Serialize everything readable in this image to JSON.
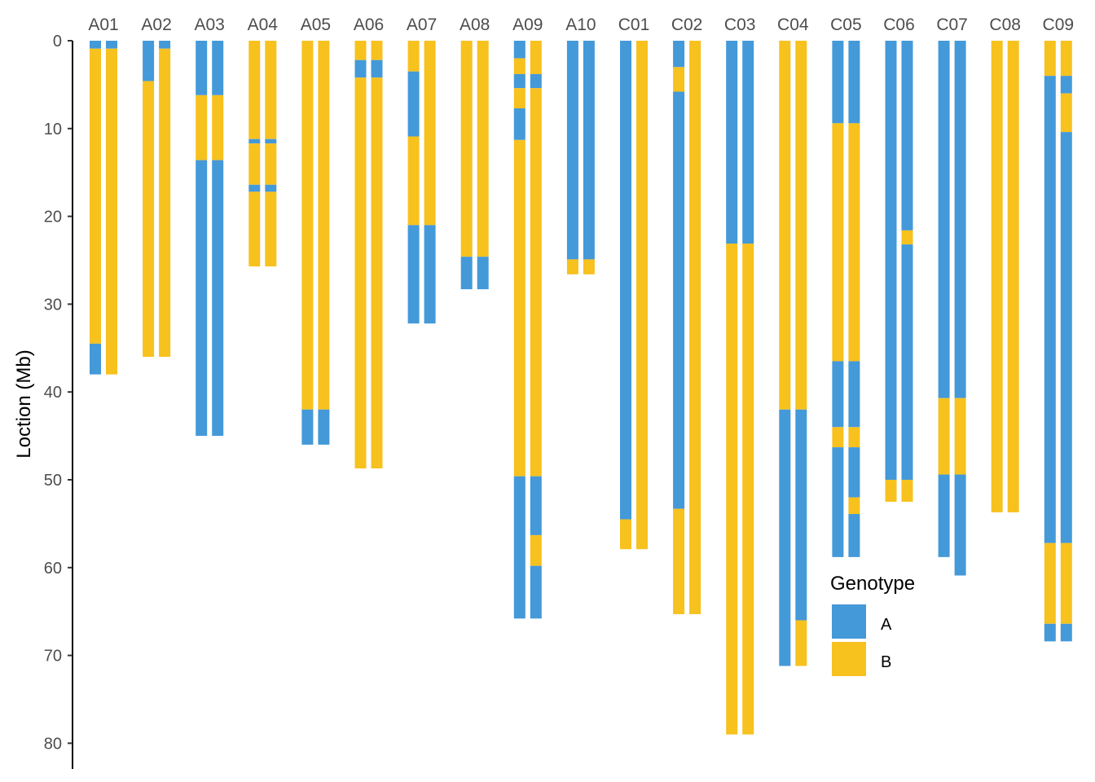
{
  "chart_data": {
    "type": "bar",
    "subtype": "chromosome-genotype-ideogram",
    "ylabel": "Loction (Mb)",
    "ylim": [
      0,
      83
    ],
    "y_reversed": true,
    "y_ticks": [
      0,
      10,
      20,
      30,
      40,
      50,
      60,
      70,
      80
    ],
    "grid": false,
    "colors": {
      "A": "#4499d9",
      "B": "#f7c11e"
    },
    "legend": {
      "title": "Genotype",
      "entries": [
        "A",
        "B"
      ],
      "position": "bottom-right"
    },
    "chromosomes": [
      {
        "name": "A01",
        "haplotypes": [
          [
            {
              "start": 0,
              "end": 0.9,
              "genotype": "A"
            },
            {
              "start": 0.9,
              "end": 34.5,
              "genotype": "B"
            },
            {
              "start": 34.5,
              "end": 38,
              "genotype": "A"
            }
          ],
          [
            {
              "start": 0,
              "end": 0.9,
              "genotype": "A"
            },
            {
              "start": 0.9,
              "end": 38,
              "genotype": "B"
            }
          ]
        ]
      },
      {
        "name": "A02",
        "haplotypes": [
          [
            {
              "start": 0,
              "end": 4.6,
              "genotype": "A"
            },
            {
              "start": 4.6,
              "end": 36,
              "genotype": "B"
            }
          ],
          [
            {
              "start": 0,
              "end": 0.9,
              "genotype": "A"
            },
            {
              "start": 0.9,
              "end": 36,
              "genotype": "B"
            }
          ]
        ]
      },
      {
        "name": "A03",
        "haplotypes": [
          [
            {
              "start": 0,
              "end": 6.2,
              "genotype": "A"
            },
            {
              "start": 6.2,
              "end": 13.6,
              "genotype": "B"
            },
            {
              "start": 13.6,
              "end": 45,
              "genotype": "A"
            }
          ],
          [
            {
              "start": 0,
              "end": 6.2,
              "genotype": "A"
            },
            {
              "start": 6.2,
              "end": 13.6,
              "genotype": "B"
            },
            {
              "start": 13.6,
              "end": 45,
              "genotype": "A"
            }
          ]
        ]
      },
      {
        "name": "A04",
        "haplotypes": [
          [
            {
              "start": 0,
              "end": 11.2,
              "genotype": "B"
            },
            {
              "start": 11.2,
              "end": 11.7,
              "genotype": "A"
            },
            {
              "start": 11.7,
              "end": 16.4,
              "genotype": "B"
            },
            {
              "start": 16.4,
              "end": 17.2,
              "genotype": "A"
            },
            {
              "start": 17.2,
              "end": 25.7,
              "genotype": "B"
            }
          ],
          [
            {
              "start": 0,
              "end": 11.2,
              "genotype": "B"
            },
            {
              "start": 11.2,
              "end": 11.7,
              "genotype": "A"
            },
            {
              "start": 11.7,
              "end": 16.4,
              "genotype": "B"
            },
            {
              "start": 16.4,
              "end": 17.2,
              "genotype": "A"
            },
            {
              "start": 17.2,
              "end": 25.7,
              "genotype": "B"
            }
          ]
        ]
      },
      {
        "name": "A05",
        "haplotypes": [
          [
            {
              "start": 0,
              "end": 42,
              "genotype": "B"
            },
            {
              "start": 42,
              "end": 46,
              "genotype": "A"
            }
          ],
          [
            {
              "start": 0,
              "end": 42,
              "genotype": "B"
            },
            {
              "start": 42,
              "end": 46,
              "genotype": "A"
            }
          ]
        ]
      },
      {
        "name": "A06",
        "haplotypes": [
          [
            {
              "start": 0,
              "end": 2.2,
              "genotype": "B"
            },
            {
              "start": 2.2,
              "end": 4.2,
              "genotype": "A"
            },
            {
              "start": 4.2,
              "end": 48.7,
              "genotype": "B"
            }
          ],
          [
            {
              "start": 0,
              "end": 2.2,
              "genotype": "B"
            },
            {
              "start": 2.2,
              "end": 4.2,
              "genotype": "A"
            },
            {
              "start": 4.2,
              "end": 48.7,
              "genotype": "B"
            }
          ]
        ]
      },
      {
        "name": "A07",
        "haplotypes": [
          [
            {
              "start": 0,
              "end": 3.5,
              "genotype": "B"
            },
            {
              "start": 3.5,
              "end": 10.9,
              "genotype": "A"
            },
            {
              "start": 10.9,
              "end": 21,
              "genotype": "B"
            },
            {
              "start": 21,
              "end": 32.2,
              "genotype": "A"
            }
          ],
          [
            {
              "start": 0,
              "end": 21,
              "genotype": "B"
            },
            {
              "start": 21,
              "end": 32.2,
              "genotype": "A"
            }
          ]
        ]
      },
      {
        "name": "A08",
        "haplotypes": [
          [
            {
              "start": 0,
              "end": 24.6,
              "genotype": "B"
            },
            {
              "start": 24.6,
              "end": 28.3,
              "genotype": "A"
            }
          ],
          [
            {
              "start": 0,
              "end": 24.6,
              "genotype": "B"
            },
            {
              "start": 24.6,
              "end": 28.3,
              "genotype": "A"
            }
          ]
        ]
      },
      {
        "name": "A09",
        "haplotypes": [
          [
            {
              "start": 0,
              "end": 2,
              "genotype": "A"
            },
            {
              "start": 2,
              "end": 3.8,
              "genotype": "B"
            },
            {
              "start": 3.8,
              "end": 5.4,
              "genotype": "A"
            },
            {
              "start": 5.4,
              "end": 7.7,
              "genotype": "B"
            },
            {
              "start": 7.7,
              "end": 11.3,
              "genotype": "A"
            },
            {
              "start": 11.3,
              "end": 49.6,
              "genotype": "B"
            },
            {
              "start": 49.6,
              "end": 65.8,
              "genotype": "A"
            }
          ],
          [
            {
              "start": 0,
              "end": 3.8,
              "genotype": "B"
            },
            {
              "start": 3.8,
              "end": 5.4,
              "genotype": "A"
            },
            {
              "start": 5.4,
              "end": 49.6,
              "genotype": "B"
            },
            {
              "start": 49.6,
              "end": 56.3,
              "genotype": "A"
            },
            {
              "start": 56.3,
              "end": 59.8,
              "genotype": "B"
            },
            {
              "start": 59.8,
              "end": 65.8,
              "genotype": "A"
            }
          ]
        ]
      },
      {
        "name": "A10",
        "haplotypes": [
          [
            {
              "start": 0,
              "end": 24.9,
              "genotype": "A"
            },
            {
              "start": 24.9,
              "end": 26.6,
              "genotype": "B"
            }
          ],
          [
            {
              "start": 0,
              "end": 24.9,
              "genotype": "A"
            },
            {
              "start": 24.9,
              "end": 26.6,
              "genotype": "B"
            }
          ]
        ]
      },
      {
        "name": "C01",
        "haplotypes": [
          [
            {
              "start": 0,
              "end": 54.5,
              "genotype": "A"
            },
            {
              "start": 54.5,
              "end": 57.9,
              "genotype": "B"
            }
          ],
          [
            {
              "start": 0,
              "end": 57.9,
              "genotype": "B"
            }
          ]
        ]
      },
      {
        "name": "C02",
        "haplotypes": [
          [
            {
              "start": 0,
              "end": 3,
              "genotype": "A"
            },
            {
              "start": 3,
              "end": 5.8,
              "genotype": "B"
            },
            {
              "start": 5.8,
              "end": 53.3,
              "genotype": "A"
            },
            {
              "start": 53.3,
              "end": 65.3,
              "genotype": "B"
            }
          ],
          [
            {
              "start": 0,
              "end": 65.3,
              "genotype": "B"
            }
          ]
        ]
      },
      {
        "name": "C03",
        "haplotypes": [
          [
            {
              "start": 0,
              "end": 23.1,
              "genotype": "A"
            },
            {
              "start": 23.1,
              "end": 79,
              "genotype": "B"
            }
          ],
          [
            {
              "start": 0,
              "end": 23.1,
              "genotype": "A"
            },
            {
              "start": 23.1,
              "end": 79,
              "genotype": "B"
            }
          ]
        ]
      },
      {
        "name": "C04",
        "haplotypes": [
          [
            {
              "start": 0,
              "end": 42,
              "genotype": "B"
            },
            {
              "start": 42,
              "end": 71.2,
              "genotype": "A"
            }
          ],
          [
            {
              "start": 0,
              "end": 42,
              "genotype": "B"
            },
            {
              "start": 42,
              "end": 66,
              "genotype": "A"
            },
            {
              "start": 66,
              "end": 71.2,
              "genotype": "B"
            }
          ]
        ]
      },
      {
        "name": "C05",
        "haplotypes": [
          [
            {
              "start": 0,
              "end": 9.4,
              "genotype": "A"
            },
            {
              "start": 9.4,
              "end": 36.5,
              "genotype": "B"
            },
            {
              "start": 36.5,
              "end": 44,
              "genotype": "A"
            },
            {
              "start": 44,
              "end": 46.3,
              "genotype": "B"
            },
            {
              "start": 46.3,
              "end": 58.8,
              "genotype": "A"
            }
          ],
          [
            {
              "start": 0,
              "end": 9.4,
              "genotype": "A"
            },
            {
              "start": 9.4,
              "end": 36.5,
              "genotype": "B"
            },
            {
              "start": 36.5,
              "end": 44,
              "genotype": "A"
            },
            {
              "start": 44,
              "end": 46.3,
              "genotype": "B"
            },
            {
              "start": 46.3,
              "end": 52,
              "genotype": "A"
            },
            {
              "start": 52,
              "end": 53.9,
              "genotype": "B"
            },
            {
              "start": 53.9,
              "end": 58.8,
              "genotype": "A"
            }
          ]
        ]
      },
      {
        "name": "C06",
        "haplotypes": [
          [
            {
              "start": 0,
              "end": 50,
              "genotype": "A"
            },
            {
              "start": 50,
              "end": 52.5,
              "genotype": "B"
            }
          ],
          [
            {
              "start": 0,
              "end": 21.6,
              "genotype": "A"
            },
            {
              "start": 21.6,
              "end": 23.2,
              "genotype": "B"
            },
            {
              "start": 23.2,
              "end": 50,
              "genotype": "A"
            },
            {
              "start": 50,
              "end": 52.5,
              "genotype": "B"
            }
          ]
        ]
      },
      {
        "name": "C07",
        "haplotypes": [
          [
            {
              "start": 0,
              "end": 40.7,
              "genotype": "A"
            },
            {
              "start": 40.7,
              "end": 49.4,
              "genotype": "B"
            },
            {
              "start": 49.4,
              "end": 58.8,
              "genotype": "A"
            }
          ],
          [
            {
              "start": 0,
              "end": 40.7,
              "genotype": "A"
            },
            {
              "start": 40.7,
              "end": 49.4,
              "genotype": "B"
            },
            {
              "start": 49.4,
              "end": 60.9,
              "genotype": "A"
            }
          ]
        ]
      },
      {
        "name": "C08",
        "haplotypes": [
          [
            {
              "start": 0,
              "end": 53.7,
              "genotype": "B"
            }
          ],
          [
            {
              "start": 0,
              "end": 53.7,
              "genotype": "B"
            }
          ]
        ]
      },
      {
        "name": "C09",
        "haplotypes": [
          [
            {
              "start": 0,
              "end": 4,
              "genotype": "B"
            },
            {
              "start": 4,
              "end": 57.2,
              "genotype": "A"
            },
            {
              "start": 57.2,
              "end": 66.4,
              "genotype": "B"
            },
            {
              "start": 66.4,
              "end": 68.4,
              "genotype": "A"
            }
          ],
          [
            {
              "start": 0,
              "end": 4,
              "genotype": "B"
            },
            {
              "start": 4,
              "end": 6,
              "genotype": "A"
            },
            {
              "start": 6,
              "end": 10.4,
              "genotype": "B"
            },
            {
              "start": 10.4,
              "end": 57.2,
              "genotype": "A"
            },
            {
              "start": 57.2,
              "end": 66.4,
              "genotype": "B"
            },
            {
              "start": 66.4,
              "end": 68.4,
              "genotype": "A"
            }
          ]
        ]
      }
    ]
  }
}
